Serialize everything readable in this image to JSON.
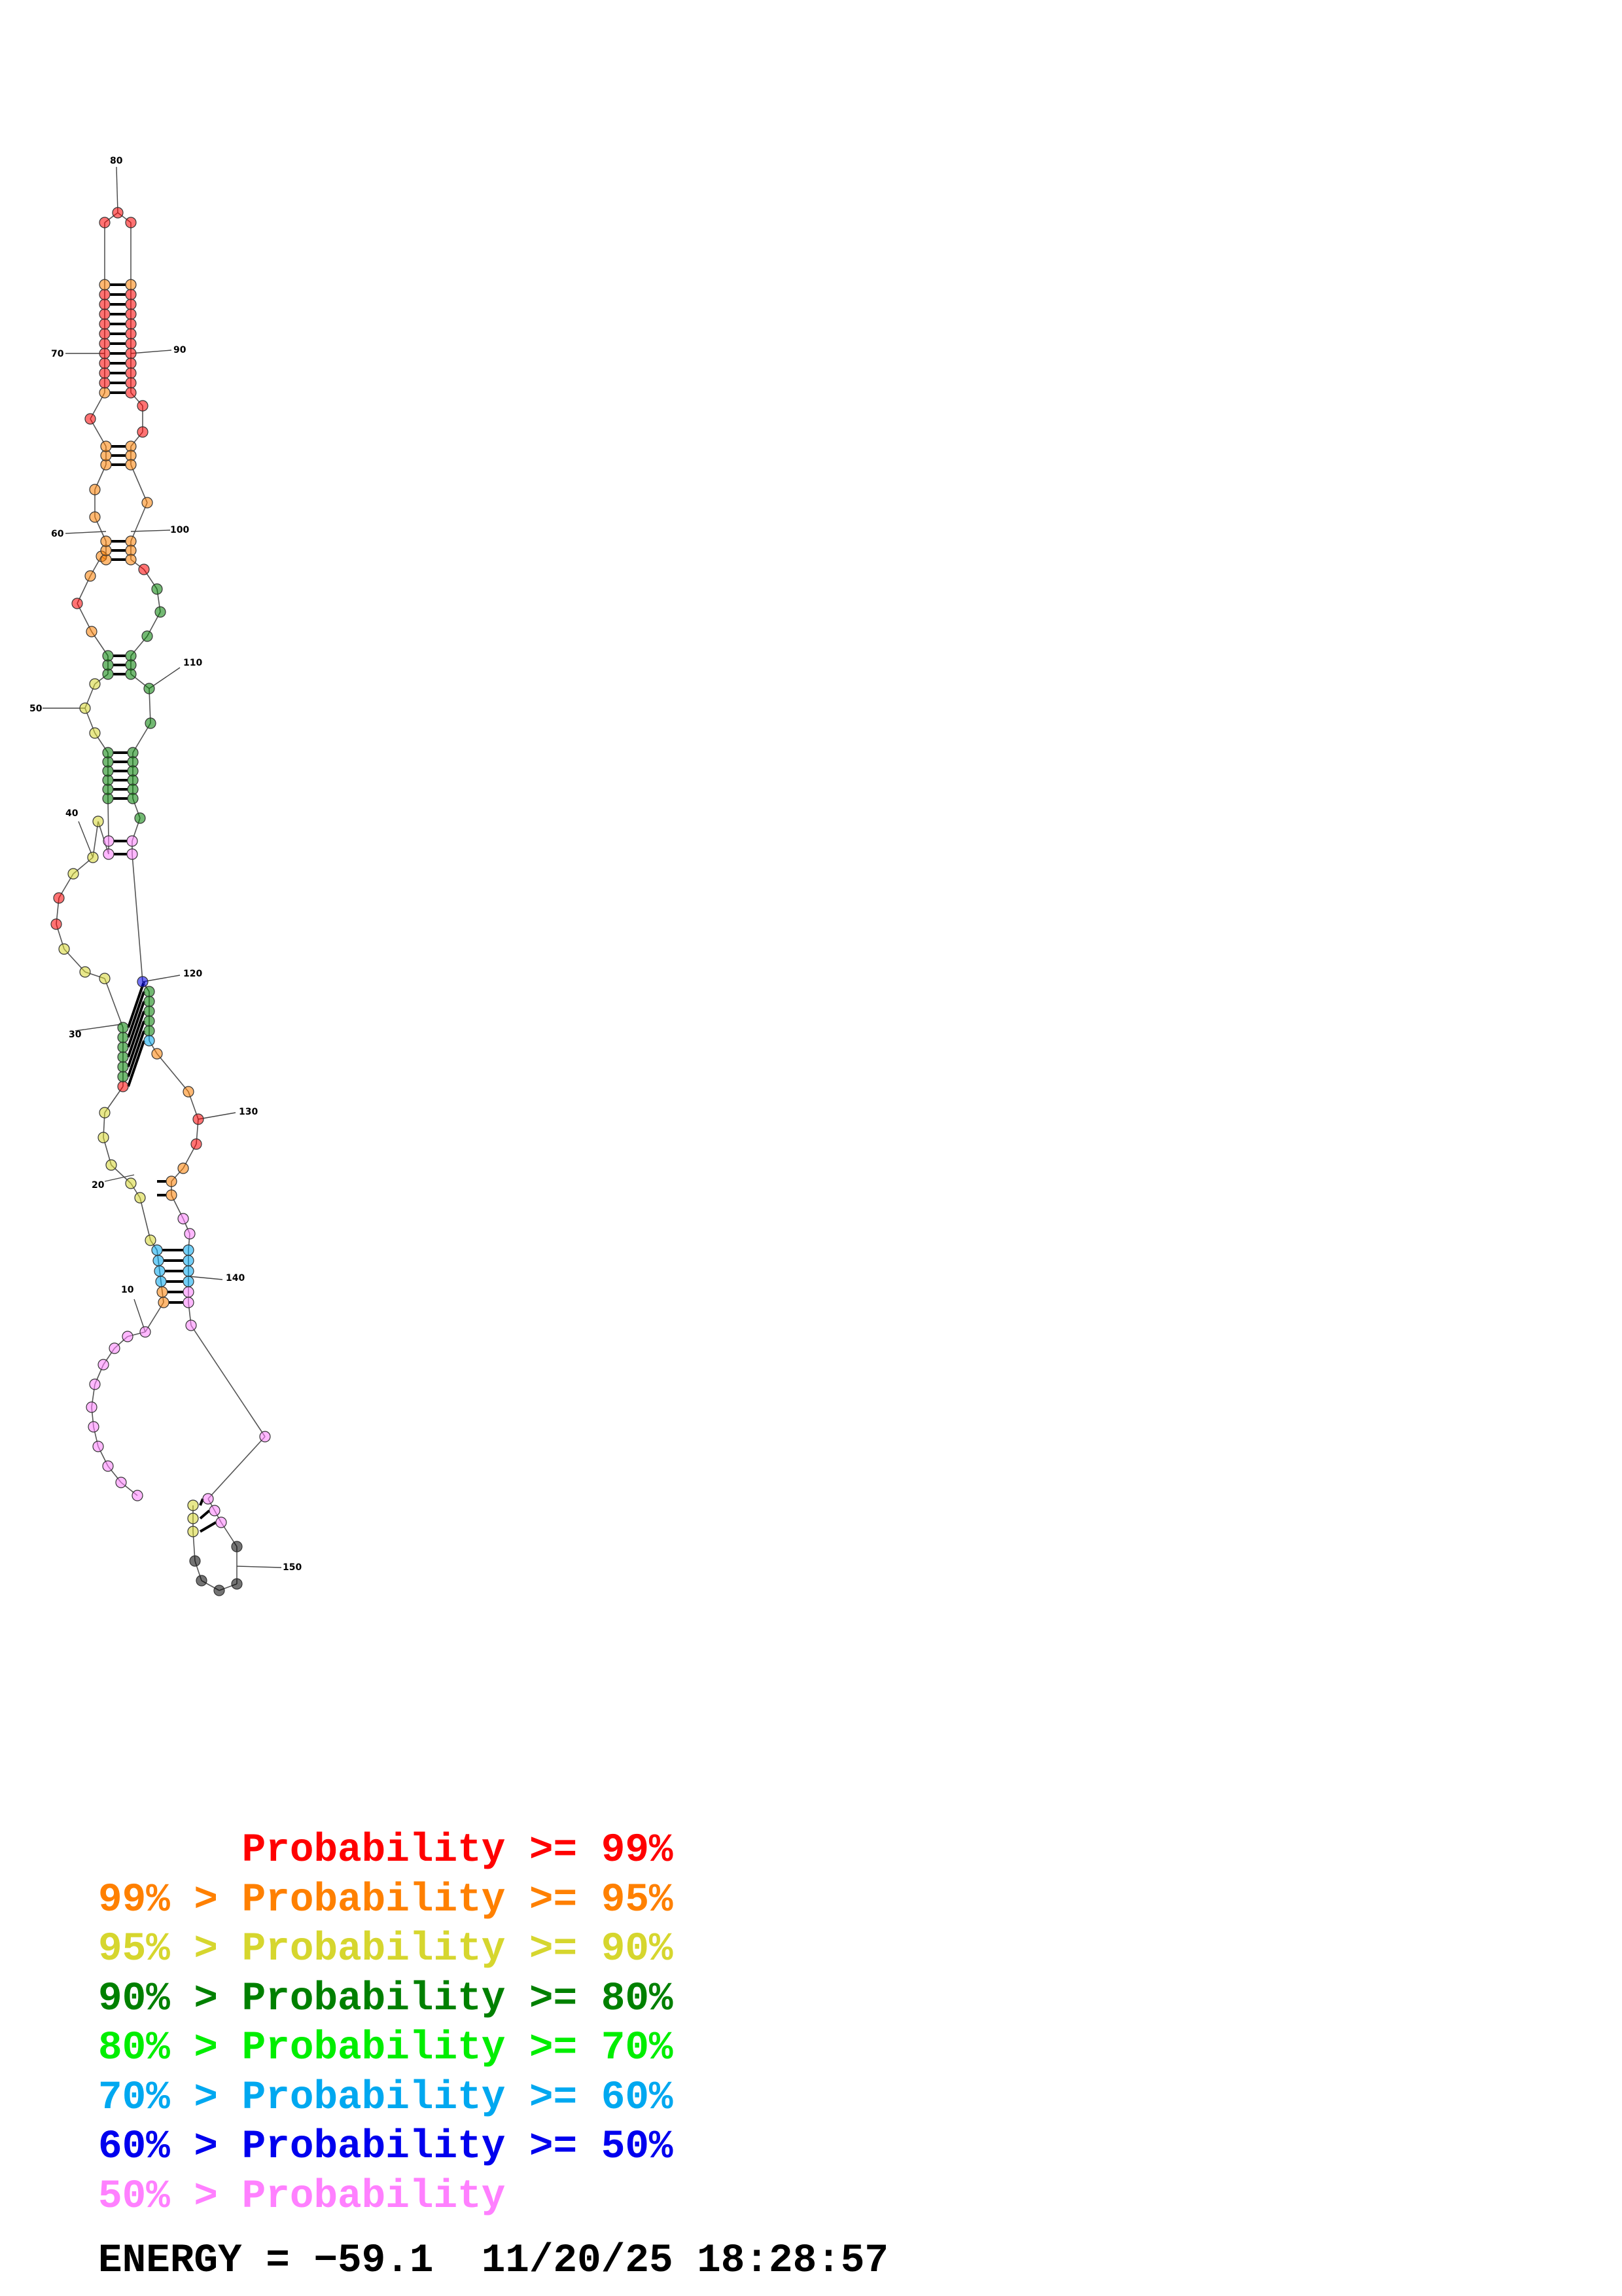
{
  "colors": {
    "p99": "#ff0000",
    "p95": "#ff8000",
    "p90": "#d6d62e",
    "p80": "#008000",
    "p70": "#00ee00",
    "p60": "#00a8f0",
    "p50": "#0000ee",
    "plt50": "#ff80ff"
  },
  "legend": [
    {
      "text": "      Probability >= 99%",
      "color_key": "p99"
    },
    {
      "text": "99% > Probability >= 95%",
      "color_key": "p95"
    },
    {
      "text": "95% > Probability >= 90%",
      "color_key": "p90"
    },
    {
      "text": "90% > Probability >= 80%",
      "color_key": "p80"
    },
    {
      "text": "80% > Probability >= 70%",
      "color_key": "p70"
    },
    {
      "text": "70% > Probability >= 60%",
      "color_key": "p60"
    },
    {
      "text": "60% > Probability >= 50%",
      "color_key": "p50"
    },
    {
      "text": "50% > Probability",
      "color_key": "plt50"
    }
  ],
  "footer": {
    "energy": "ENERGY = −59.1",
    "timestamp": "11/20/25 18:28:57"
  },
  "structure": {
    "index_labels": [
      "10",
      "20",
      "30",
      "40",
      "50",
      "60",
      "70",
      "80",
      "90",
      "100",
      "110",
      "120",
      "130",
      "140",
      "150"
    ],
    "stems": [
      {
        "name": "stem-top",
        "pairs": 12,
        "color_key": "p99"
      },
      {
        "name": "stem-2",
        "pairs": 3,
        "color_key": "p95"
      },
      {
        "name": "stem-3",
        "pairs": 3,
        "color_key": "p95"
      },
      {
        "name": "stem-4",
        "pairs": 3,
        "color_key": "p80"
      },
      {
        "name": "stem-5",
        "pairs": 6,
        "color_key": "p80"
      },
      {
        "name": "stem-6",
        "pairs": 2,
        "color_key": "plt50"
      },
      {
        "name": "stem-7",
        "pairs": 7,
        "color_key": "p80"
      },
      {
        "name": "stem-8",
        "pairs": 2,
        "color_key": "p95"
      },
      {
        "name": "stem-9",
        "pairs": 6,
        "color_key": "p60"
      },
      {
        "name": "stem-bottom",
        "pairs": 3,
        "color_key": "plt50"
      }
    ]
  }
}
